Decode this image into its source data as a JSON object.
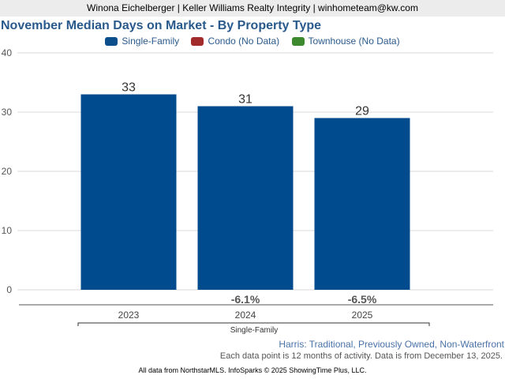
{
  "header": {
    "agent_line": "Winona Eichelberger | Keller Williams Realty Integrity | winhometeam@kw.com"
  },
  "chart_data": {
    "type": "bar",
    "title": "November Median Days on Market - By Property Type",
    "legend": [
      {
        "label": "Single-Family",
        "color": "#0a4e8c"
      },
      {
        "label": "Condo (No Data)",
        "color": "#a12b2b"
      },
      {
        "label": "Townhouse (No Data)",
        "color": "#3d8a2e"
      }
    ],
    "legend_position": "top-center",
    "categories": [
      "2023",
      "2024",
      "2025"
    ],
    "group_label": "Single-Family",
    "series": [
      {
        "name": "Single-Family",
        "values": [
          33,
          31,
          29
        ],
        "color": "#004b8d"
      }
    ],
    "data_labels": [
      "33",
      "31",
      "29"
    ],
    "pct_change": [
      "",
      "-6.1%",
      "-6.5%"
    ],
    "ylim": [
      0,
      40
    ],
    "yticks": [
      0,
      10,
      20,
      30,
      40
    ],
    "grid": true,
    "xlabel": "",
    "ylabel": ""
  },
  "footer": {
    "area": "Harris: Traditional, Previously Owned, Non-Waterfront",
    "note": "Each data point is 12 months of activity. Data is from December 13, 2025.",
    "source": "All data from NorthstarMLS. InfoSparks © 2025 ShowingTime Plus, LLC."
  }
}
